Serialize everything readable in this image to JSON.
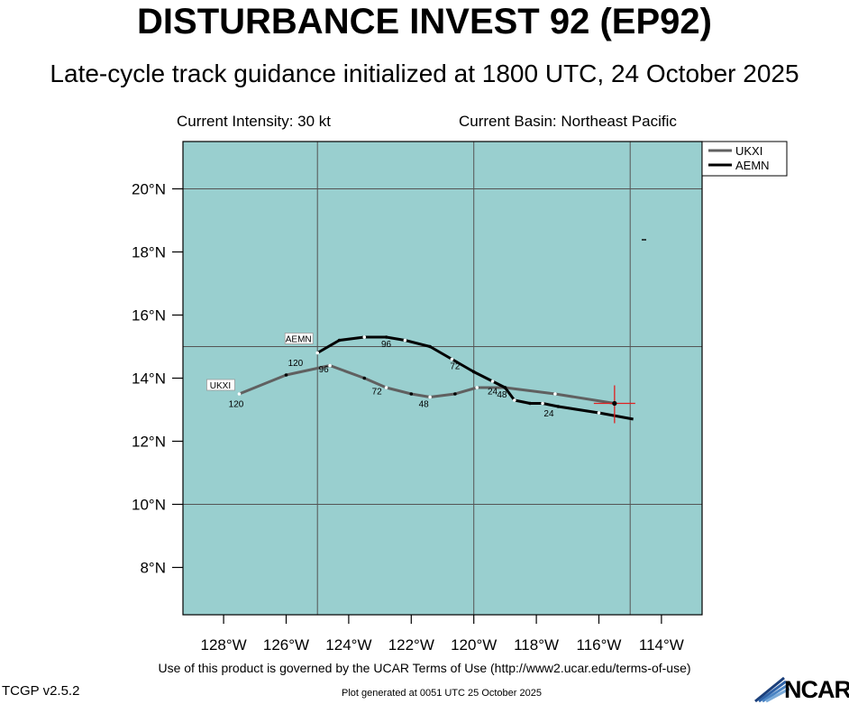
{
  "header": {
    "title": "DISTURBANCE INVEST 92 (EP92)",
    "subtitle": "Late-cycle track guidance initialized at 1800 UTC, 24 October 2025",
    "current_intensity": "Current Intensity: 30 kt",
    "current_basin": "Current Basin: Northeast Pacific"
  },
  "footer": {
    "terms": "Use of this product is governed by the UCAR Terms of Use (http://www2.ucar.edu/terms-of-use)",
    "version": "TCGP v2.5.2",
    "generated": "Plot generated at 0051 UTC   25 October 2025",
    "logo_text": "NCAR"
  },
  "colors": {
    "ocean": "#99cfcf",
    "ukxi": "#606060",
    "aemn": "#000000",
    "current_position": "#e02020"
  },
  "chart_data": {
    "type": "line",
    "title": "DISTURBANCE INVEST 92 (EP92)",
    "subtitle": "Late-cycle track guidance initialized at 1800 UTC, 24 October 2025",
    "xlabel": "",
    "ylabel": "",
    "xlim": [
      -129.3,
      -112.7
    ],
    "ylim": [
      6.5,
      21.5
    ],
    "x_ticks": [
      -128,
      -126,
      -124,
      -122,
      -120,
      -118,
      -116,
      -114
    ],
    "x_tick_labels": [
      "128°W",
      "126°W",
      "124°W",
      "122°W",
      "120°W",
      "118°W",
      "116°W",
      "114°W"
    ],
    "y_ticks": [
      8,
      10,
      12,
      14,
      16,
      18,
      20
    ],
    "y_tick_labels": [
      "8°N",
      "10°N",
      "12°N",
      "14°N",
      "16°N",
      "18°N",
      "20°N"
    ],
    "grid_lon": [
      -125,
      -120,
      -115
    ],
    "grid_lat": [
      10,
      15,
      20
    ],
    "legend_position": "top-right",
    "current_position": [
      -115.5,
      13.2
    ],
    "series": [
      {
        "name": "UKXI",
        "color": "#606060",
        "lon": [
          -115.5,
          -117.4,
          -119.0,
          -119.9,
          -120.6,
          -121.4,
          -122.0,
          -122.8,
          -123.5,
          -124.6,
          -126.0,
          -127.5
        ],
        "lat": [
          13.2,
          13.5,
          13.7,
          13.7,
          13.5,
          13.4,
          13.5,
          13.7,
          14.0,
          14.4,
          14.1,
          13.5
        ],
        "hour_labels": [
          {
            "text": "24",
            "lon": -119.4,
            "lat": 13.6
          },
          {
            "text": "48",
            "lon": -121.6,
            "lat": 13.2
          },
          {
            "text": "72",
            "lon": -123.1,
            "lat": 13.6
          },
          {
            "text": "96",
            "lon": -124.8,
            "lat": 14.3
          },
          {
            "text": "120",
            "lon": -127.6,
            "lat": 13.2
          }
        ]
      },
      {
        "name": "AEMN",
        "color": "#000000",
        "lon": [
          -114.9,
          -116.0,
          -117.3,
          -117.8,
          -118.2,
          -118.7,
          -119.0,
          -119.4,
          -120.0,
          -120.7,
          -121.4,
          -122.2,
          -122.8,
          -123.5,
          -124.3,
          -125.0
        ],
        "lat": [
          12.7,
          12.9,
          13.1,
          13.2,
          13.2,
          13.3,
          13.7,
          13.9,
          14.2,
          14.6,
          15.0,
          15.2,
          15.3,
          15.3,
          15.2,
          14.8
        ],
        "hour_labels": [
          {
            "text": "24",
            "lon": -117.6,
            "lat": 12.9
          },
          {
            "text": "48",
            "lon": -119.1,
            "lat": 13.5
          },
          {
            "text": "72",
            "lon": -120.6,
            "lat": 14.4
          },
          {
            "text": "96",
            "lon": -122.8,
            "lat": 15.1
          },
          {
            "text": "120",
            "lon": -125.7,
            "lat": 14.5
          }
        ]
      }
    ]
  }
}
